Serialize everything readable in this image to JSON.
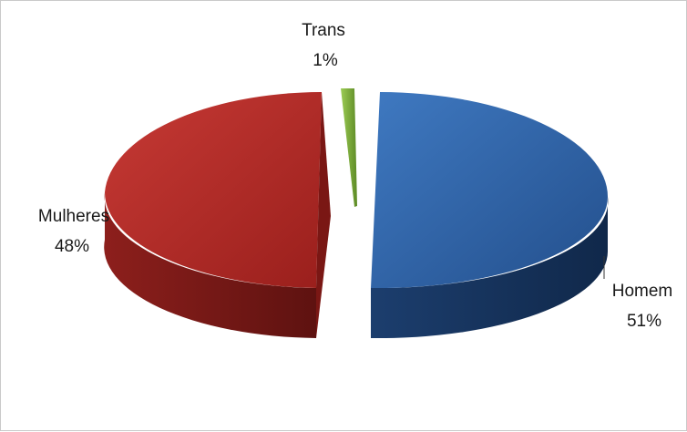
{
  "chart_data": {
    "type": "pie",
    "title": "",
    "slices": [
      {
        "label": "Homem",
        "value": 51,
        "value_label": "51%",
        "color": "#2e5f9e"
      },
      {
        "label": "Mulheres",
        "value": 48,
        "value_label": "48%",
        "color": "#a82623"
      },
      {
        "label": "Trans",
        "value": 1,
        "value_label": "1%",
        "color": "#7cab3c"
      }
    ],
    "style": "3d-exploded",
    "legend": "none"
  }
}
